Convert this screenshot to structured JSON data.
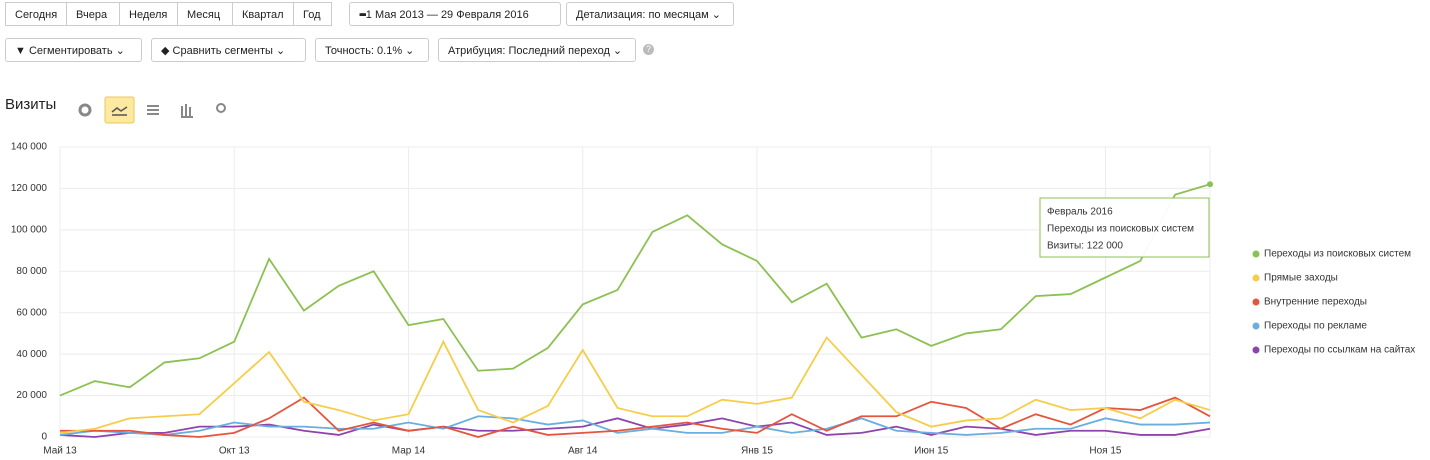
{
  "toolbar": {
    "periods": [
      "Сегодня",
      "Вчера",
      "Неделя",
      "Месяц",
      "Квартал",
      "Год"
    ],
    "date_range": "1 Мая 2013 — 29 Февраля 2016",
    "detail": "Детализация: по месяцам",
    "segment": "Сегментировать",
    "compare": "Сравнить сегменты",
    "accuracy": "Точность: 0.1%",
    "attribution": "Атрибуция: Последний переход"
  },
  "section_title": "Визиты",
  "chart_data": {
    "type": "line",
    "categories": [
      "Май 13",
      null,
      null,
      null,
      null,
      "Окт 13",
      null,
      null,
      null,
      null,
      "Мар 14",
      null,
      null,
      null,
      null,
      "Авг 14",
      null,
      null,
      null,
      null,
      "Янв 15",
      null,
      null,
      null,
      null,
      "Июн 15",
      null,
      null,
      null,
      null,
      "Ноя 15",
      null,
      null,
      null
    ],
    "series": [
      {
        "name": "Переходы из поисковых систем",
        "color": "#8cc152",
        "values": [
          20000,
          27000,
          24000,
          36000,
          38000,
          46000,
          86000,
          61000,
          73000,
          80000,
          54000,
          57000,
          32000,
          33000,
          43000,
          64000,
          71000,
          99000,
          107000,
          93000,
          85000,
          65000,
          74000,
          48000,
          52000,
          44000,
          50000,
          52000,
          68000,
          69000,
          77000,
          85000,
          117000,
          122000
        ]
      },
      {
        "name": "Прямые заходы",
        "color": "#f6cd4a",
        "values": [
          2000,
          4000,
          9000,
          10000,
          11000,
          26000,
          41000,
          17000,
          13000,
          8000,
          11000,
          46000,
          13000,
          7000,
          15000,
          42000,
          14000,
          10000,
          10000,
          18000,
          16000,
          19000,
          48000,
          30000,
          12000,
          5000,
          8000,
          9000,
          18000,
          13000,
          14000,
          9000,
          18000,
          13000
        ]
      },
      {
        "name": "Внутренние переходы",
        "color": "#e5553d",
        "values": [
          3000,
          3000,
          3000,
          1000,
          0,
          2000,
          9000,
          19000,
          3000,
          7000,
          3000,
          5000,
          0,
          5000,
          1000,
          2000,
          3000,
          5000,
          7000,
          4000,
          2000,
          11000,
          3000,
          10000,
          10000,
          17000,
          14000,
          4000,
          11000,
          6000,
          14000,
          13000,
          19000,
          10000
        ]
      },
      {
        "name": "Переходы по рекламе",
        "color": "#6aaee0",
        "values": [
          1000,
          3000,
          2000,
          1000,
          3000,
          7000,
          5000,
          5000,
          4000,
          4000,
          7000,
          4000,
          10000,
          9000,
          6000,
          8000,
          2000,
          4000,
          2000,
          2000,
          5000,
          2000,
          4000,
          9000,
          3000,
          2000,
          1000,
          2000,
          4000,
          4000,
          9000,
          6000,
          6000,
          7000
        ]
      },
      {
        "name": "Переходы по ссылкам на сайтах",
        "color": "#8e44ad",
        "values": [
          1000,
          0,
          2000,
          2000,
          5000,
          5000,
          6000,
          3000,
          1000,
          6000,
          3000,
          5000,
          3000,
          3000,
          4000,
          5000,
          9000,
          4000,
          6000,
          9000,
          5000,
          7000,
          1000,
          2000,
          5000,
          1000,
          5000,
          4000,
          1000,
          3000,
          3000,
          1000,
          1000,
          4000
        ]
      }
    ],
    "ylim": [
      0,
      140000
    ],
    "yticks": [
      0,
      {
        "value": 20000,
        "label": "20 000"
      },
      {
        "value": 40000,
        "label": "40 000"
      },
      {
        "value": 60000,
        "label": "60 000"
      },
      {
        "value": 80000,
        "label": "80 000"
      },
      {
        "value": 100000,
        "label": "100 000"
      },
      {
        "value": 120000,
        "label": "120 000"
      },
      {
        "value": 140000,
        "label": "140 000"
      }
    ],
    "grid": true,
    "tooltip": {
      "title": "Февраль 2016",
      "series": "Переходы из поисковых систем",
      "value": "Визиты: 122 000"
    }
  }
}
